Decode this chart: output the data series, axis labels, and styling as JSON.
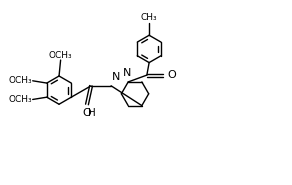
{
  "background_color": "#ffffff",
  "line_color": "#000000",
  "font_size": 6.5,
  "figsize": [
    2.92,
    1.85
  ],
  "dpi": 100,
  "xlim": [
    0,
    9.2
  ],
  "ylim": [
    0,
    5.85
  ]
}
